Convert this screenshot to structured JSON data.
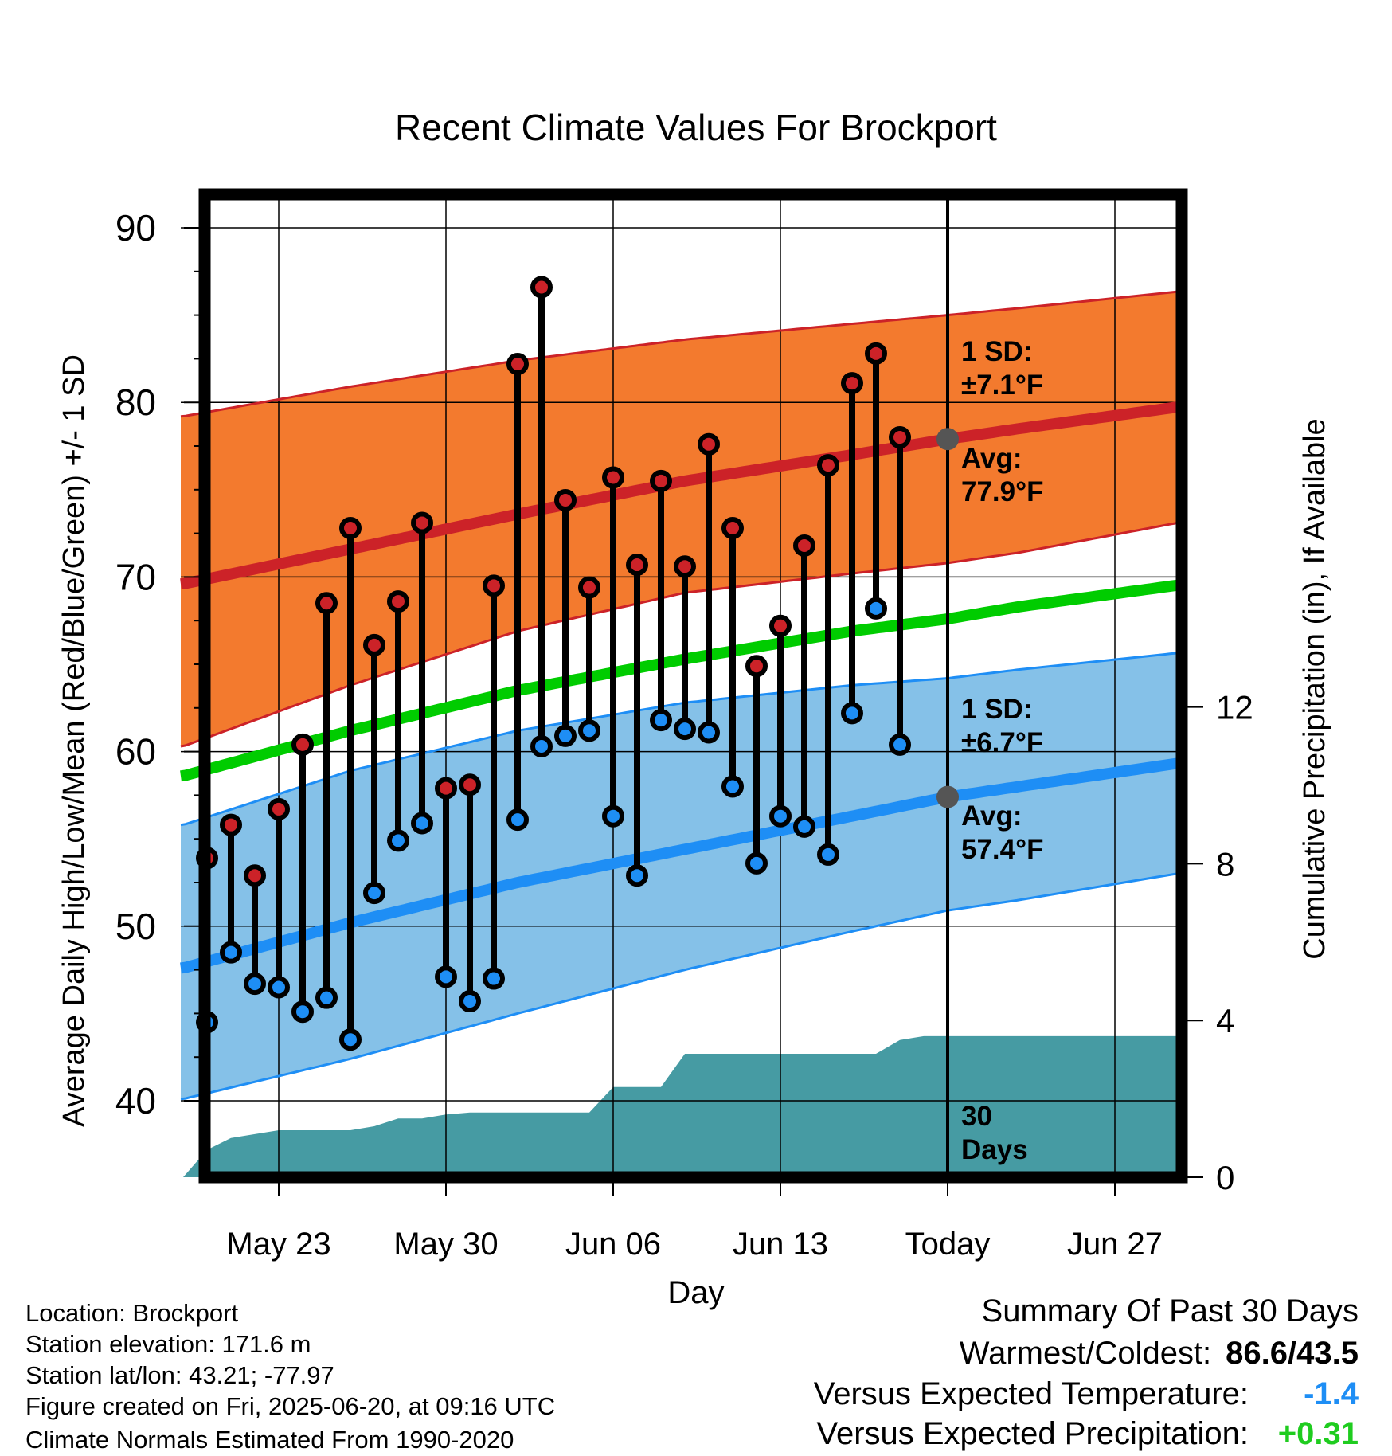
{
  "chart_data": {
    "type": "line",
    "title": "Recent Climate Values For Brockport",
    "xlabel": "Day",
    "ylabel": "Average Daily High/Low/Mean (Red/Blue/Green) +/- 1 SD",
    "y2label": "Cumulative Precipitation (in), If Available",
    "ylim": [
      35,
      92
    ],
    "y2lim": [
      0,
      28
    ],
    "yticks": [
      40,
      50,
      60,
      70,
      80,
      90
    ],
    "y2ticks": [
      0,
      4,
      8,
      12
    ],
    "x_range": [
      "2025-05-19",
      "2025-06-30"
    ],
    "x_ticks": [
      {
        "date": "2025-05-23",
        "label": "May 23"
      },
      {
        "date": "2025-05-30",
        "label": "May 30"
      },
      {
        "date": "2025-06-06",
        "label": "Jun 06"
      },
      {
        "date": "2025-06-13",
        "label": "Jun 13"
      },
      {
        "date": "2025-06-20",
        "label": "Today"
      },
      {
        "date": "2025-06-27",
        "label": "Jun 27"
      }
    ],
    "today": "2025-06-20",
    "grid": true,
    "observed": {
      "dates": [
        "2025-05-20",
        "2025-05-21",
        "2025-05-22",
        "2025-05-23",
        "2025-05-24",
        "2025-05-25",
        "2025-05-26",
        "2025-05-27",
        "2025-05-28",
        "2025-05-29",
        "2025-05-30",
        "2025-05-31",
        "2025-06-01",
        "2025-06-02",
        "2025-06-03",
        "2025-06-04",
        "2025-06-05",
        "2025-06-06",
        "2025-06-07",
        "2025-06-08",
        "2025-06-09",
        "2025-06-10",
        "2025-06-11",
        "2025-06-12",
        "2025-06-13",
        "2025-06-14",
        "2025-06-15",
        "2025-06-16",
        "2025-06-17",
        "2025-06-18",
        "2025-06-19"
      ],
      "high": [
        53.9,
        55.8,
        52.9,
        56.7,
        60.4,
        68.5,
        72.8,
        66.1,
        68.6,
        73.1,
        57.9,
        58.1,
        69.5,
        82.2,
        86.6,
        74.4,
        69.4,
        75.7,
        70.7,
        75.5,
        70.6,
        77.6,
        72.8,
        64.9,
        67.2,
        71.8,
        76.4,
        81.1,
        82.8,
        78.0,
        null
      ],
      "low": [
        44.5,
        48.5,
        46.7,
        46.5,
        45.1,
        45.9,
        43.5,
        51.9,
        54.9,
        55.9,
        47.1,
        45.7,
        47.0,
        56.1,
        60.3,
        60.9,
        61.2,
        56.3,
        52.9,
        61.8,
        61.3,
        61.1,
        58.0,
        53.6,
        56.3,
        55.7,
        54.1,
        62.2,
        68.2,
        60.4,
        null
      ]
    },
    "normals": {
      "dates": [
        "2025-05-19",
        "2025-05-26",
        "2025-06-02",
        "2025-06-09",
        "2025-06-16",
        "2025-06-20",
        "2025-06-23",
        "2025-06-30"
      ],
      "high_avg": [
        69.6,
        71.6,
        73.6,
        75.5,
        77.0,
        77.9,
        78.5,
        79.8
      ],
      "high_upper": [
        79.2,
        80.9,
        82.4,
        83.6,
        84.5,
        85.0,
        85.4,
        86.4
      ],
      "high_lower": [
        60.3,
        63.8,
        66.9,
        69.1,
        70.2,
        70.8,
        71.4,
        73.2
      ],
      "low_avg": [
        47.6,
        50.2,
        52.5,
        54.4,
        56.3,
        57.4,
        58.0,
        59.4
      ],
      "low_upper": [
        55.8,
        58.9,
        61.2,
        62.8,
        63.8,
        64.2,
        64.7,
        65.7
      ],
      "low_lower": [
        40.1,
        42.4,
        45.0,
        47.5,
        49.7,
        50.9,
        51.5,
        53.1
      ],
      "mean": [
        58.6,
        61.2,
        63.5,
        65.3,
        66.9,
        67.6,
        68.3,
        69.6
      ]
    },
    "precip": {
      "dates": [
        "2025-05-19",
        "2025-05-20",
        "2025-05-21",
        "2025-05-22",
        "2025-05-23",
        "2025-05-24",
        "2025-05-26",
        "2025-05-27",
        "2025-05-28",
        "2025-05-29",
        "2025-05-30",
        "2025-05-31",
        "2025-06-05",
        "2025-06-06",
        "2025-06-08",
        "2025-06-09",
        "2025-06-17",
        "2025-06-18",
        "2025-06-19",
        "2025-06-30"
      ],
      "values": [
        0.0,
        0.7,
        1.0,
        1.1,
        1.2,
        1.2,
        1.2,
        1.3,
        1.5,
        1.5,
        1.6,
        1.65,
        1.65,
        2.3,
        2.3,
        3.15,
        3.15,
        3.5,
        3.6,
        3.6
      ]
    },
    "annotations": [
      {
        "label": "1 SD:",
        "value": "±7.1°F"
      },
      {
        "label": "Avg:",
        "value": "77.9°F",
        "today_value": 77.9
      },
      {
        "label": "1 SD:",
        "value": "±6.7°F"
      },
      {
        "label": "Avg:",
        "value": "57.4°F",
        "today_value": 57.4
      },
      {
        "label": "30",
        "value": "Days"
      }
    ],
    "colors": {
      "high_band": "#f37a2e",
      "high_line": "#cc2228",
      "low_band": "#85c1e8",
      "low_line": "#1e8ef5",
      "mean_line": "#00cc00",
      "precip": "#469ba3",
      "high_dot": "#cc2228",
      "low_dot": "#1e8ef5",
      "annotation": "#555555"
    }
  },
  "footer": {
    "location": "Location: Brockport",
    "elevation": "Station elevation: 171.6 m",
    "latlon": "Station lat/lon: 43.21; -77.97",
    "created": "Figure created on Fri, 2025-06-20, at 09:16 UTC",
    "normals": "Climate Normals Estimated From 1990-2020"
  },
  "summary": {
    "title": "Summary Of Past 30 Days",
    "warm_cold_label": "Warmest/Coldest:",
    "warm_cold_value": "86.6/43.5",
    "temp_label": "Versus Expected Temperature:",
    "temp_value": "-1.4",
    "temp_color": "#1e8ef5",
    "precip_label": "Versus Expected Precipitation:",
    "precip_value": "+0.31",
    "precip_color": "#1fcc1f"
  }
}
